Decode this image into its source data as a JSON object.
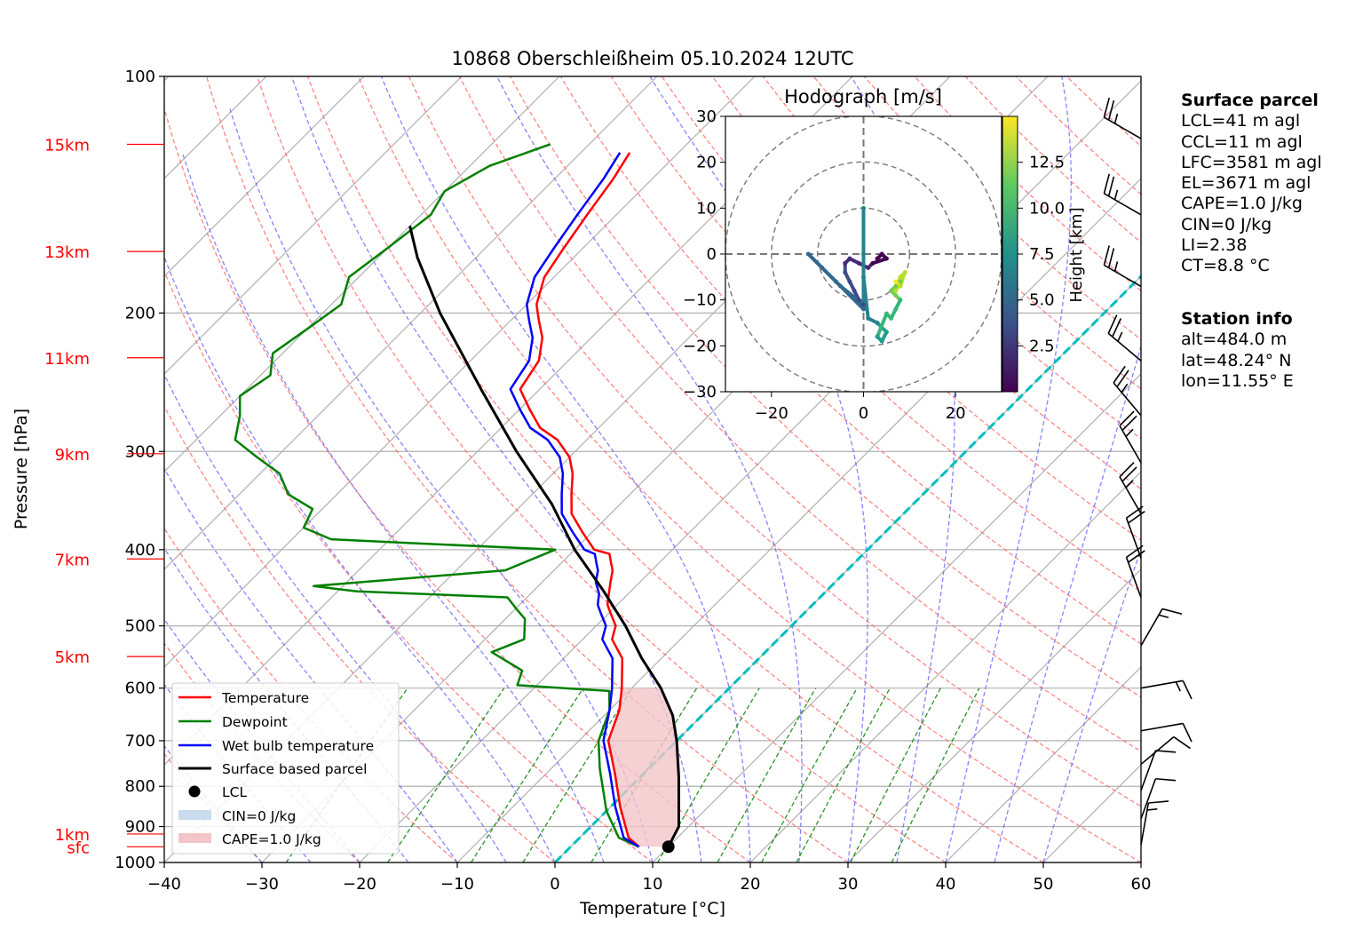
{
  "chart_data": [
    {
      "type": "line",
      "title": "10868 Oberschleißheim 05.10.2024 12UTC",
      "xlabel": "Temperature [°C]",
      "ylabel": "Pressure [hPa]",
      "xlim": [
        -40,
        60
      ],
      "ylim": [
        1000,
        100
      ],
      "y_scale": "log",
      "skew": true,
      "grid": true,
      "x_ticks": [
        "−40",
        "−30",
        "−20",
        "−10",
        "0",
        "10",
        "20",
        "30",
        "40",
        "50",
        "60"
      ],
      "y_ticks": [
        "100",
        "200",
        "300",
        "400",
        "500",
        "600",
        "700",
        "800",
        "900",
        "1000"
      ],
      "height_labels": [
        {
          "label": "15km",
          "p": 122
        },
        {
          "label": "13km",
          "p": 167
        },
        {
          "label": "11km",
          "p": 228
        },
        {
          "label": "9km",
          "p": 302
        },
        {
          "label": "7km",
          "p": 411
        },
        {
          "label": "5km",
          "p": 547
        },
        {
          "label": "1km",
          "p": 920
        },
        {
          "label": "sfc",
          "p": 955
        }
      ],
      "series": [
        {
          "name": "Temperature",
          "color": "#ff0000",
          "points": [
            [
              7,
              955
            ],
            [
              5,
              930
            ],
            [
              1,
              850
            ],
            [
              -3,
              770
            ],
            [
              -7,
              700
            ],
            [
              -9,
              640
            ],
            [
              -11,
              600
            ],
            [
              -14,
              550
            ],
            [
              -17,
              520
            ],
            [
              -18,
              500
            ],
            [
              -20,
              480
            ],
            [
              -21,
              470
            ],
            [
              -22,
              455
            ],
            [
              -23,
              440
            ],
            [
              -24,
              425
            ],
            [
              -25,
              415
            ],
            [
              -26,
              405
            ],
            [
              -28,
              400
            ],
            [
              -31,
              380
            ],
            [
              -34,
              360
            ],
            [
              -36,
              340
            ],
            [
              -38,
              320
            ],
            [
              -40,
              305
            ],
            [
              -43,
              290
            ],
            [
              -46,
              280
            ],
            [
              -49,
              265
            ],
            [
              -52,
              250
            ],
            [
              -53,
              230
            ],
            [
              -55,
              215
            ],
            [
              -57,
              205
            ],
            [
              -58,
              200
            ],
            [
              -59,
              195
            ],
            [
              -61,
              180
            ],
            [
              -62,
              165
            ],
            [
              -63,
              150
            ],
            [
              -64,
              135
            ],
            [
              -65,
              125
            ]
          ]
        },
        {
          "name": "Dewpoint",
          "color": "#008000",
          "points": [
            [
              7,
              955
            ],
            [
              4,
              930
            ],
            [
              0,
              860
            ],
            [
              -5,
              760
            ],
            [
              -8,
              700
            ],
            [
              -10,
              640
            ],
            [
              -12,
              605
            ],
            [
              -22,
              595
            ],
            [
              -23,
              570
            ],
            [
              -28,
              540
            ],
            [
              -26,
              520
            ],
            [
              -28,
              490
            ],
            [
              -30,
              475
            ],
            [
              -32,
              460
            ],
            [
              -48,
              452
            ],
            [
              -53,
              445
            ],
            [
              -35,
              425
            ],
            [
              -32,
              400
            ],
            [
              -48,
              392
            ],
            [
              -56,
              388
            ],
            [
              -60,
              375
            ],
            [
              -61,
              355
            ],
            [
              -65,
              340
            ],
            [
              -68,
              320
            ],
            [
              -72,
              305
            ],
            [
              -76,
              290
            ],
            [
              -78,
              270
            ],
            [
              -80,
              255
            ],
            [
              -79,
              240
            ],
            [
              -81,
              225
            ],
            [
              -80,
              210
            ],
            [
              -79,
              195
            ],
            [
              -81,
              180
            ],
            [
              -80,
              165
            ],
            [
              -79,
              150
            ],
            [
              -80,
              140
            ],
            [
              -78,
              130
            ],
            [
              -74,
              122
            ]
          ]
        },
        {
          "name": "Wet bulb temperature",
          "color": "#0000ff",
          "points": [
            [
              7,
              955
            ],
            [
              4.5,
              930
            ],
            [
              0.5,
              850
            ],
            [
              -3.5,
              770
            ],
            [
              -7.5,
              700
            ],
            [
              -10,
              640
            ],
            [
              -12,
              600
            ],
            [
              -15,
              550
            ],
            [
              -18,
              520
            ],
            [
              -19,
              500
            ],
            [
              -21,
              480
            ],
            [
              -22,
              470
            ],
            [
              -23,
              455
            ],
            [
              -24.5,
              440
            ],
            [
              -25.5,
              425
            ],
            [
              -26.5,
              415
            ],
            [
              -27.5,
              405
            ],
            [
              -29,
              400
            ],
            [
              -32,
              380
            ],
            [
              -35,
              360
            ],
            [
              -37,
              340
            ],
            [
              -39,
              320
            ],
            [
              -41,
              305
            ],
            [
              -44,
              290
            ],
            [
              -47,
              280
            ],
            [
              -50,
              265
            ],
            [
              -53,
              250
            ],
            [
              -54,
              230
            ],
            [
              -56,
              215
            ],
            [
              -58,
              205
            ],
            [
              -59,
              200
            ],
            [
              -60,
              195
            ],
            [
              -62,
              180
            ],
            [
              -63,
              165
            ],
            [
              -64,
              150
            ],
            [
              -65,
              135
            ],
            [
              -66,
              125
            ]
          ]
        },
        {
          "name": "Surface based parcel",
          "color": "#000000",
          "points": [
            [
              10,
              955
            ],
            [
              9,
              900
            ],
            [
              7,
              850
            ],
            [
              4,
              780
            ],
            [
              0,
              700
            ],
            [
              -3,
              650
            ],
            [
              -7,
              600
            ],
            [
              -12,
              550
            ],
            [
              -17,
              500
            ],
            [
              -23,
              450
            ],
            [
              -30,
              400
            ],
            [
              -37,
              350
            ],
            [
              -46,
              300
            ],
            [
              -56,
              250
            ],
            [
              -68,
              200
            ],
            [
              -76,
              170
            ],
            [
              -80,
              155
            ]
          ]
        }
      ],
      "lcl": {
        "temperature": 10,
        "pressure": 955
      },
      "legend": {
        "placement": "lower-left",
        "entries": [
          "Temperature",
          "Dewpoint",
          "Wet bulb temperature",
          "Surface based parcel",
          "LCL",
          "CIN=0 J/kg",
          "CAPE=1.0 J/kg"
        ]
      },
      "wind_barbs": [
        {
          "p": 120,
          "speed_kt": 25,
          "direction_deg": 300
        },
        {
          "p": 150,
          "speed_kt": 25,
          "direction_deg": 300
        },
        {
          "p": 185,
          "speed_kt": 25,
          "direction_deg": 300
        },
        {
          "p": 230,
          "speed_kt": 25,
          "direction_deg": 310
        },
        {
          "p": 270,
          "speed_kt": 25,
          "direction_deg": 320
        },
        {
          "p": 310,
          "speed_kt": 25,
          "direction_deg": 330
        },
        {
          "p": 360,
          "speed_kt": 25,
          "direction_deg": 330
        },
        {
          "p": 410,
          "speed_kt": 20,
          "direction_deg": 340
        },
        {
          "p": 460,
          "speed_kt": 20,
          "direction_deg": 340
        },
        {
          "p": 530,
          "speed_kt": 15,
          "direction_deg": 30
        },
        {
          "p": 600,
          "speed_kt": 15,
          "direction_deg": 80
        },
        {
          "p": 680,
          "speed_kt": 10,
          "direction_deg": 80
        },
        {
          "p": 750,
          "speed_kt": 10,
          "direction_deg": 50
        },
        {
          "p": 810,
          "speed_kt": 10,
          "direction_deg": 20
        },
        {
          "p": 880,
          "speed_kt": 10,
          "direction_deg": 20
        },
        {
          "p": 950,
          "speed_kt": 15,
          "direction_deg": 10
        }
      ]
    },
    {
      "type": "scatter",
      "title": "Hodograph [m/s]",
      "xlim": [
        -30,
        30
      ],
      "ylim": [
        -30,
        30
      ],
      "x_ticks": [
        "−20",
        "0",
        "20"
      ],
      "y_ticks": [
        "30",
        "20",
        "10",
        "0",
        "−10",
        "−20",
        "−30"
      ],
      "range_rings": [
        10,
        20,
        30
      ],
      "colorbar": {
        "label": "Height [km]",
        "ticks": [
          "2.5",
          "5.0",
          "7.5",
          "10.0",
          "12.5"
        ],
        "range": [
          0,
          15
        ]
      },
      "points": [
        {
          "u": 3,
          "v": -1,
          "h": 0.5
        },
        {
          "u": 4,
          "v": 0,
          "h": 0.8
        },
        {
          "u": 5,
          "v": -1,
          "h": 1.0
        },
        {
          "u": 2,
          "v": -2,
          "h": 1.2
        },
        {
          "u": 1,
          "v": -3,
          "h": 1.5
        },
        {
          "u": -1,
          "v": -2,
          "h": 2.0
        },
        {
          "u": -3,
          "v": -1,
          "h": 2.3
        },
        {
          "u": -4,
          "v": -2,
          "h": 2.6
        },
        {
          "u": -4,
          "v": -4,
          "h": 3.0
        },
        {
          "u": -3,
          "v": -6,
          "h": 3.3
        },
        {
          "u": -2,
          "v": -8,
          "h": 3.6
        },
        {
          "u": -1,
          "v": -10,
          "h": 4.0
        },
        {
          "u": 0,
          "v": -11,
          "h": 4.3
        },
        {
          "u": -5,
          "v": -7,
          "h": 4.6
        },
        {
          "u": -9,
          "v": -3,
          "h": 4.9
        },
        {
          "u": -12,
          "v": 0,
          "h": 5.2
        },
        {
          "u": -6,
          "v": -6,
          "h": 5.5
        },
        {
          "u": 0,
          "v": -12,
          "h": 5.8
        },
        {
          "u": 0,
          "v": 0,
          "h": 6.1
        },
        {
          "u": 0,
          "v": 10,
          "h": 6.4
        },
        {
          "u": 0,
          "v": -5,
          "h": 6.7
        },
        {
          "u": 1,
          "v": -14,
          "h": 7.0
        },
        {
          "u": 3,
          "v": -15,
          "h": 7.4
        },
        {
          "u": 5,
          "v": -17,
          "h": 7.8
        },
        {
          "u": 4,
          "v": -19,
          "h": 8.2
        },
        {
          "u": 3,
          "v": -18,
          "h": 8.6
        },
        {
          "u": 5,
          "v": -13,
          "h": 9.0
        },
        {
          "u": 6,
          "v": -14,
          "h": 9.4
        },
        {
          "u": 7,
          "v": -12,
          "h": 9.8
        },
        {
          "u": 8,
          "v": -10,
          "h": 10.2
        },
        {
          "u": 7,
          "v": -9,
          "h": 10.6
        },
        {
          "u": 6,
          "v": -8,
          "h": 11.0
        },
        {
          "u": 7,
          "v": -7,
          "h": 11.4
        },
        {
          "u": 8,
          "v": -6,
          "h": 11.8
        },
        {
          "u": 7,
          "v": -8,
          "h": 12.2
        },
        {
          "u": 8,
          "v": -5,
          "h": 12.6
        },
        {
          "u": 9,
          "v": -4,
          "h": 13.0
        },
        {
          "u": 8,
          "v": -7,
          "h": 13.4
        },
        {
          "u": 7,
          "v": -6,
          "h": 13.8
        }
      ]
    }
  ],
  "surface_parcel": {
    "heading": "Surface parcel",
    "lines": [
      "LCL=41 m agl",
      "CCL=11 m agl",
      "LFC=3581 m agl",
      "EL=3671 m agl",
      "CAPE=1.0 J/kg",
      "CIN=0 J/kg",
      "LI=2.38",
      "CT=8.8 °C"
    ]
  },
  "station_info": {
    "heading": "Station info",
    "lines": [
      "alt=484.0 m",
      "lat=48.24° N",
      "lon=11.55° E"
    ]
  },
  "colors": {
    "temperature": "#ff0000",
    "dewpoint": "#008000",
    "wetbulb": "#0000ff",
    "parcel": "#000000",
    "freezing_level": "#00bfbf",
    "dry_adiabat": "#ff6666",
    "moist_adiabat": "#6666ff",
    "mixing_ratio": "#008000",
    "cin_fill": "#c9dcee",
    "cape_fill": "#f4c5c8"
  }
}
